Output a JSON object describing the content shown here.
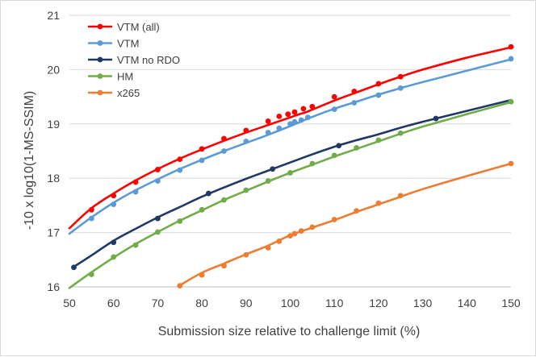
{
  "chart_data": {
    "type": "line",
    "title": "",
    "xlabel": "Submission  size relative to challenge limit (%)",
    "ylabel": "-10 x log10(1-MS-SSIM)",
    "xlim": [
      50,
      150
    ],
    "ylim": [
      16,
      21
    ],
    "x_ticks": [
      "50",
      "60",
      "70",
      "80",
      "90",
      "100",
      "110",
      "120",
      "130",
      "140",
      "150"
    ],
    "y_ticks": [
      "16",
      "17",
      "18",
      "19",
      "20",
      "21"
    ],
    "grid": "horizontal",
    "legend_position": "top-left",
    "series": [
      {
        "name": "VTM (all)",
        "color": "#ff0000",
        "x": [
          50,
          55,
          60,
          65,
          70,
          75,
          80,
          85,
          90,
          95,
          97.5,
          100,
          101,
          102.5,
          104,
          110,
          115,
          120,
          125,
          130,
          140,
          150
        ],
        "y": [
          17.08,
          17.45,
          17.72,
          17.96,
          18.17,
          18.36,
          18.53,
          18.69,
          18.84,
          18.98,
          19.05,
          19.12,
          19.15,
          19.19,
          19.23,
          19.43,
          19.58,
          19.73,
          19.87,
          20.0,
          20.22,
          20.41
        ],
        "markers_x": [
          55,
          60,
          65,
          70,
          75,
          80,
          85,
          90,
          95,
          97.5,
          99.5,
          101,
          103,
          105,
          110,
          114.5,
          120,
          125,
          150
        ],
        "markers_y": [
          17.42,
          17.68,
          17.93,
          18.16,
          18.35,
          18.54,
          18.73,
          18.88,
          19.05,
          19.14,
          19.18,
          19.22,
          19.28,
          19.32,
          19.5,
          19.6,
          19.74,
          19.87,
          20.42
        ]
      },
      {
        "name": "VTM",
        "color": "#5b9bd5",
        "x": [
          50,
          55,
          60,
          65,
          70,
          75,
          80,
          85,
          90,
          95,
          100,
          105,
          110,
          115,
          120,
          125,
          130,
          140,
          150
        ],
        "y": [
          16.98,
          17.28,
          17.55,
          17.78,
          17.98,
          18.17,
          18.34,
          18.5,
          18.65,
          18.8,
          18.96,
          19.13,
          19.28,
          19.41,
          19.54,
          19.66,
          19.77,
          19.98,
          20.19
        ],
        "markers_x": [
          55,
          60,
          65,
          70,
          75,
          80,
          85,
          90,
          95,
          97.5,
          100,
          101,
          102.5,
          104,
          110,
          114.5,
          120,
          125,
          150
        ],
        "markers_y": [
          17.26,
          17.52,
          17.75,
          17.95,
          18.15,
          18.33,
          18.5,
          18.68,
          18.84,
          18.92,
          19.0,
          19.04,
          19.07,
          19.12,
          19.27,
          19.39,
          19.53,
          19.66,
          20.2
        ]
      },
      {
        "name": "VTM no RDO",
        "color": "#1f3864",
        "x": [
          51,
          55,
          60,
          65,
          70,
          75,
          80,
          85,
          90,
          95,
          100,
          105,
          110,
          115,
          120,
          125,
          130,
          140,
          150
        ],
        "y": [
          16.37,
          16.58,
          16.85,
          17.07,
          17.28,
          17.47,
          17.66,
          17.83,
          17.99,
          18.14,
          18.29,
          18.44,
          18.58,
          18.7,
          18.81,
          18.93,
          19.04,
          19.24,
          19.44
        ],
        "markers_x": [
          51,
          60,
          70,
          81.5,
          96,
          111,
          133
        ],
        "markers_y": [
          16.36,
          16.82,
          17.26,
          17.72,
          18.17,
          18.6,
          19.1
        ]
      },
      {
        "name": "HM",
        "color": "#70ad47",
        "x": [
          50,
          55,
          60,
          65,
          70,
          75,
          80,
          85,
          90,
          95,
          100,
          105,
          110,
          115,
          120,
          125,
          130,
          140,
          150
        ],
        "y": [
          15.98,
          16.27,
          16.54,
          16.79,
          17.01,
          17.22,
          17.41,
          17.6,
          17.77,
          17.94,
          18.1,
          18.25,
          18.4,
          18.54,
          18.68,
          18.82,
          18.95,
          19.18,
          19.4
        ],
        "markers_x": [
          55,
          60,
          65,
          70,
          75,
          80,
          85,
          90,
          95,
          100,
          105,
          110,
          115,
          120,
          125,
          150
        ],
        "markers_y": [
          16.23,
          16.55,
          16.77,
          17.01,
          17.21,
          17.42,
          17.6,
          17.78,
          17.95,
          18.1,
          18.27,
          18.42,
          18.56,
          18.7,
          18.83,
          19.41
        ]
      },
      {
        "name": "x265",
        "color": "#ed7d31",
        "x": [
          75,
          80,
          85,
          90,
          95,
          100,
          105,
          110,
          115,
          120,
          125,
          130,
          140,
          150
        ],
        "y": [
          16.03,
          16.26,
          16.43,
          16.6,
          16.76,
          16.95,
          17.09,
          17.23,
          17.38,
          17.52,
          17.66,
          17.8,
          18.04,
          18.27
        ],
        "markers_x": [
          75,
          80,
          85,
          90,
          95,
          97.5,
          100,
          101,
          102.5,
          105,
          110,
          115,
          120,
          125,
          150
        ],
        "markers_y": [
          16.02,
          16.22,
          16.39,
          16.59,
          16.72,
          16.84,
          16.94,
          16.98,
          17.03,
          17.1,
          17.24,
          17.4,
          17.54,
          17.68,
          18.27
        ]
      }
    ]
  }
}
